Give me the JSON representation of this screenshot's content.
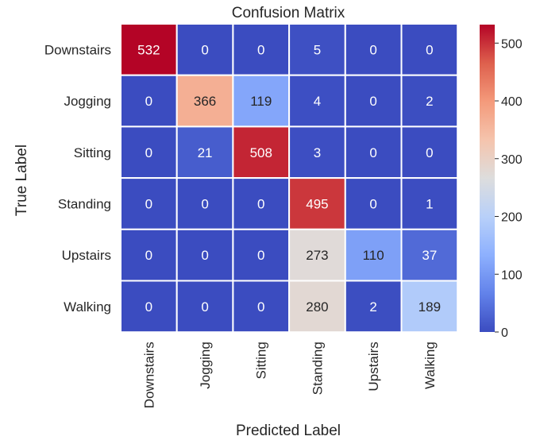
{
  "chart_data": {
    "type": "heatmap",
    "title": "Confusion Matrix",
    "xlabel": "Predicted Label",
    "ylabel": "True Label",
    "x_categories": [
      "Downstairs",
      "Jogging",
      "Sitting",
      "Standing",
      "Upstairs",
      "Walking"
    ],
    "y_categories": [
      "Downstairs",
      "Jogging",
      "Sitting",
      "Standing",
      "Upstairs",
      "Walking"
    ],
    "values": [
      [
        532,
        0,
        0,
        5,
        0,
        0
      ],
      [
        0,
        366,
        119,
        4,
        0,
        2
      ],
      [
        0,
        21,
        508,
        3,
        0,
        0
      ],
      [
        0,
        0,
        0,
        495,
        0,
        1
      ],
      [
        0,
        0,
        0,
        273,
        110,
        37
      ],
      [
        0,
        0,
        0,
        280,
        2,
        189
      ]
    ],
    "colormap": "coolwarm",
    "vmin": 0,
    "vmax": 532,
    "colorbar_ticks": [
      0,
      100,
      200,
      300,
      400,
      500
    ],
    "grid_line_color": "#ffffff"
  }
}
